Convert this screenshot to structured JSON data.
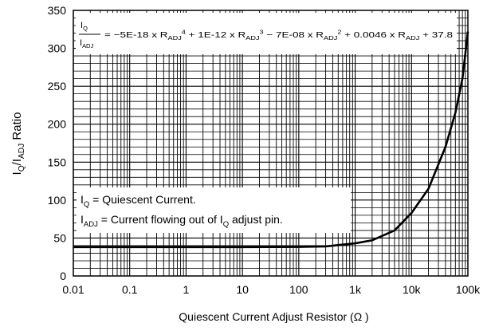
{
  "chart_data": {
    "type": "line",
    "x_scale": "log",
    "xlabel": "Quiescent Current Adjust Resistor (Ω )",
    "ylabel": {
      "main": "I",
      "sub1": "Q",
      "slash": "/I",
      "sub2": "ADJ",
      "tail": " Ratio"
    },
    "xlim": [
      0.01,
      100000
    ],
    "ylim": [
      0,
      350
    ],
    "x_ticks": [
      0.01,
      0.1,
      1,
      10,
      100,
      1000,
      10000,
      100000
    ],
    "x_tick_labels": [
      "0.01",
      "0.1",
      "1",
      "10",
      "100",
      "1k",
      "10k",
      "100k"
    ],
    "y_ticks": [
      0,
      50,
      100,
      150,
      200,
      250,
      300,
      350
    ],
    "y_tick_labels": [
      "0",
      "50",
      "100",
      "150",
      "200",
      "250",
      "300",
      "350"
    ],
    "grid": true,
    "series": [
      {
        "x": [
          0.01,
          0.1,
          1,
          10,
          100,
          300,
          1000,
          2000,
          5000,
          10000,
          20000,
          40000,
          60000,
          80000,
          100000
        ],
        "y": [
          38,
          38,
          38,
          38,
          38.3,
          39,
          43,
          47,
          60,
          83,
          115,
          170,
          215,
          260,
          322
        ]
      }
    ],
    "equation": {
      "fraction_top_main": "I",
      "fraction_top_sub": "Q",
      "fraction_bottom_main": "I",
      "fraction_bottom_sub": "ADJ",
      "parts": [
        {
          "t": " = −5E-18 x R"
        },
        {
          "sub": "ADJ"
        },
        {
          "sup": "4"
        },
        {
          "t": " + 1E-12 x R"
        },
        {
          "sub": "ADJ"
        },
        {
          "sup": "3"
        },
        {
          "t": " − 7E-08 x R"
        },
        {
          "sub": "ADJ"
        },
        {
          "sup": "2"
        },
        {
          "t": " + 0.0046 x R"
        },
        {
          "sub": "ADJ"
        },
        {
          "t": " + 37.8"
        }
      ]
    },
    "legend_notes": [
      [
        {
          "t": "I"
        },
        {
          "sub": "Q"
        },
        {
          "t": " = Quiescent Current."
        }
      ],
      [
        {
          "t": "I"
        },
        {
          "sub": "ADJ"
        },
        {
          "t": " = Current flowing out of I"
        },
        {
          "sub": "Q"
        },
        {
          "t": " adjust pin."
        }
      ]
    ]
  }
}
